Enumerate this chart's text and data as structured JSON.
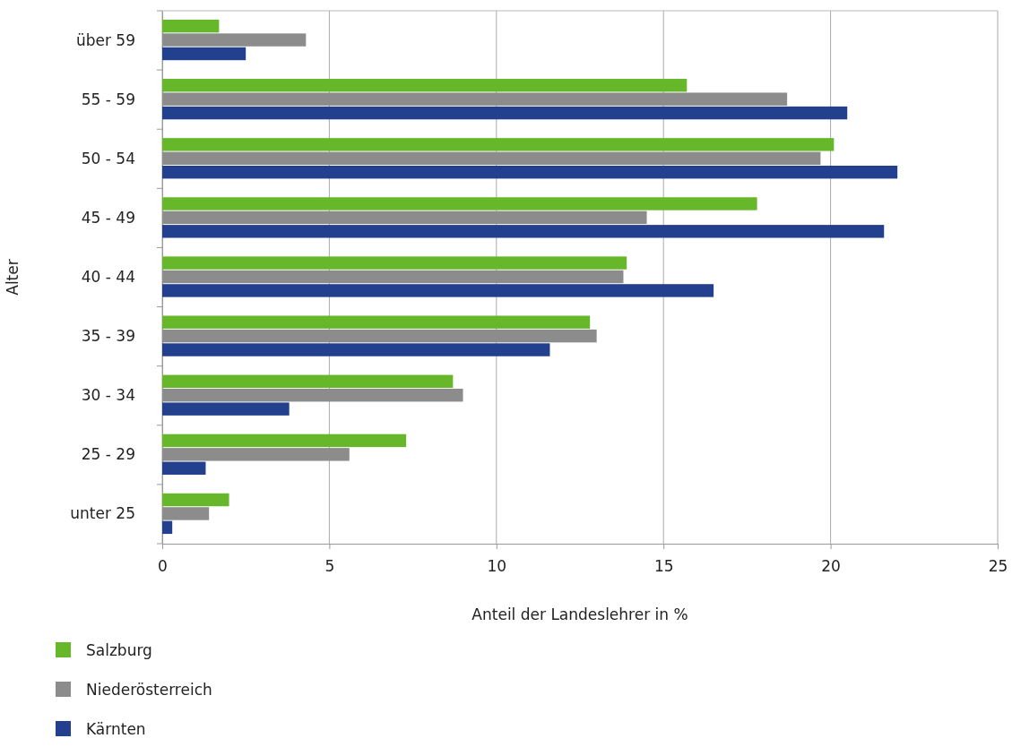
{
  "chart_data": {
    "type": "bar",
    "orientation": "horizontal",
    "xlabel": "Anteil der Landeslehrer in %",
    "ylabel": "Alter",
    "categories": [
      "über 59",
      "55 - 59",
      "50 - 54",
      "45 - 49",
      "40 - 44",
      "35 - 39",
      "30 - 34",
      "25 - 29",
      "unter 25"
    ],
    "series": [
      {
        "name": "Salzburg",
        "color": "#66b82a",
        "values": [
          1.7,
          15.7,
          20.1,
          17.8,
          13.9,
          12.8,
          8.7,
          7.3,
          2.0
        ]
      },
      {
        "name": "Niederösterreich",
        "color": "#8c8c8c",
        "values": [
          4.3,
          18.7,
          19.7,
          14.5,
          13.8,
          13.0,
          9.0,
          5.6,
          1.4
        ]
      },
      {
        "name": "Kärnten",
        "color": "#23408e",
        "values": [
          2.5,
          20.5,
          22.0,
          21.6,
          16.5,
          11.6,
          3.8,
          1.3,
          0.3
        ]
      }
    ],
    "xlim": [
      0,
      25
    ],
    "xticks": [
      0,
      5,
      10,
      15,
      20,
      25
    ],
    "grid": "x",
    "legend": "bottom left"
  }
}
